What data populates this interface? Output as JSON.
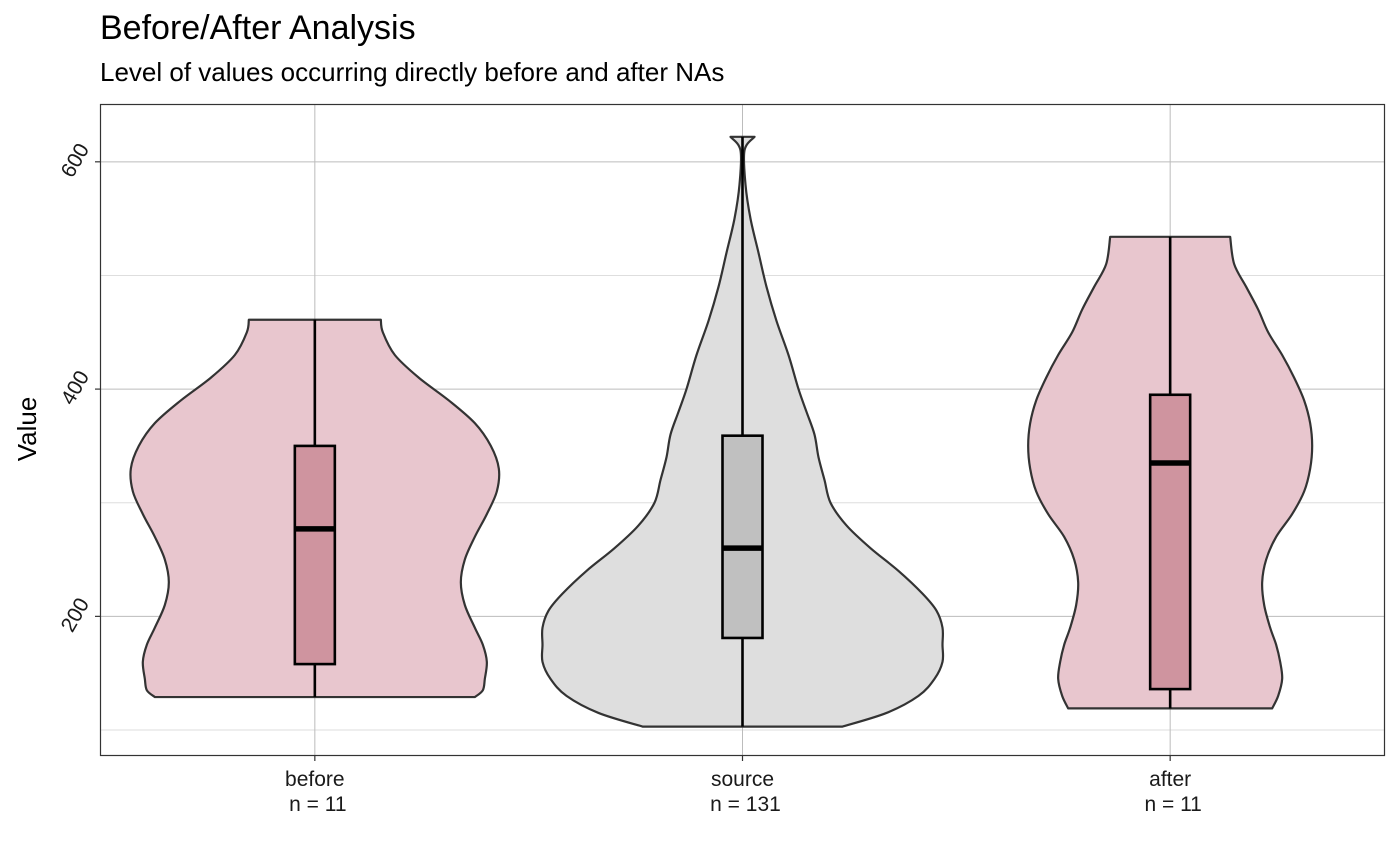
{
  "chart_data": {
    "type": "violin",
    "title": "Before/After Analysis",
    "subtitle": "Level of values occurring directly before and after NAs",
    "xlabel": "",
    "ylabel": "Value",
    "ylim": [
      78,
      650
    ],
    "y_ticks": [
      200,
      400,
      600
    ],
    "grid": true,
    "legend": "none",
    "categories": [
      {
        "label": "before",
        "n_label": "n = 11",
        "fill": "#e8c6ce",
        "box_fill": "#cf949f",
        "min": 129,
        "q1": 158,
        "median": 277,
        "q3": 350,
        "max": 461,
        "density": [
          [
            129,
            0.8
          ],
          [
            135,
            0.84
          ],
          [
            145,
            0.85
          ],
          [
            160,
            0.86
          ],
          [
            175,
            0.84
          ],
          [
            190,
            0.8
          ],
          [
            210,
            0.75
          ],
          [
            230,
            0.73
          ],
          [
            250,
            0.75
          ],
          [
            270,
            0.8
          ],
          [
            290,
            0.86
          ],
          [
            310,
            0.91
          ],
          [
            330,
            0.92
          ],
          [
            350,
            0.88
          ],
          [
            370,
            0.8
          ],
          [
            390,
            0.67
          ],
          [
            410,
            0.52
          ],
          [
            430,
            0.4
          ],
          [
            450,
            0.34
          ],
          [
            461,
            0.33
          ]
        ]
      },
      {
        "label": "source",
        "n_label": "n = 131",
        "fill": "#dedede",
        "box_fill": "#c0c0c0",
        "min": 103,
        "q1": 181,
        "median": 260,
        "q3": 359,
        "max": 622,
        "density": [
          [
            103,
            0.5
          ],
          [
            115,
            0.72
          ],
          [
            130,
            0.88
          ],
          [
            145,
            0.96
          ],
          [
            160,
            1.0
          ],
          [
            175,
            1.0
          ],
          [
            190,
            1.0
          ],
          [
            205,
            0.97
          ],
          [
            220,
            0.9
          ],
          [
            240,
            0.78
          ],
          [
            260,
            0.64
          ],
          [
            280,
            0.52
          ],
          [
            300,
            0.44
          ],
          [
            320,
            0.41
          ],
          [
            340,
            0.38
          ],
          [
            360,
            0.36
          ],
          [
            380,
            0.32
          ],
          [
            400,
            0.28
          ],
          [
            430,
            0.23
          ],
          [
            460,
            0.17
          ],
          [
            490,
            0.12
          ],
          [
            520,
            0.08
          ],
          [
            550,
            0.04
          ],
          [
            580,
            0.015
          ],
          [
            610,
            0.01
          ],
          [
            622,
            0.06
          ]
        ]
      },
      {
        "label": "after",
        "n_label": "n = 11",
        "fill": "#e8c6ce",
        "box_fill": "#cf949f",
        "min": 119,
        "q1": 136,
        "median": 335,
        "q3": 395,
        "max": 534,
        "density": [
          [
            119,
            0.51
          ],
          [
            130,
            0.54
          ],
          [
            145,
            0.56
          ],
          [
            160,
            0.55
          ],
          [
            175,
            0.53
          ],
          [
            190,
            0.5
          ],
          [
            210,
            0.47
          ],
          [
            230,
            0.46
          ],
          [
            250,
            0.48
          ],
          [
            270,
            0.53
          ],
          [
            290,
            0.61
          ],
          [
            310,
            0.67
          ],
          [
            330,
            0.7
          ],
          [
            350,
            0.71
          ],
          [
            370,
            0.7
          ],
          [
            390,
            0.67
          ],
          [
            410,
            0.62
          ],
          [
            430,
            0.56
          ],
          [
            450,
            0.49
          ],
          [
            470,
            0.44
          ],
          [
            490,
            0.38
          ],
          [
            510,
            0.32
          ],
          [
            534,
            0.3
          ]
        ]
      }
    ]
  }
}
